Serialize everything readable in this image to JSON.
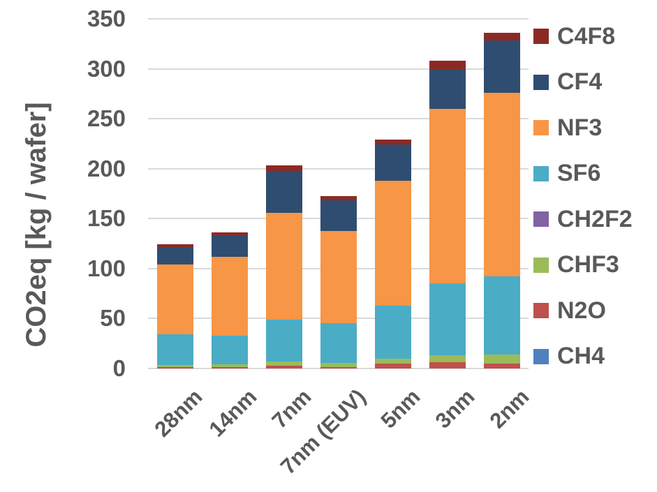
{
  "colors": {
    "text": "#595959",
    "gridline": "#D9D9D9",
    "background": "#FFFFFF"
  },
  "chart_data": {
    "type": "bar",
    "stacked": true,
    "title": "",
    "ylabel": "CO2eq [kg / wafer]",
    "xlabel": "",
    "ylim": [
      0,
      350
    ],
    "y_ticks": [
      0,
      50,
      100,
      150,
      200,
      250,
      300,
      350
    ],
    "grid": true,
    "legend_position": "right",
    "categories": [
      "28nm",
      "14nm",
      "7nm",
      "7nm (EUV)",
      "5nm",
      "3nm",
      "2nm"
    ],
    "series": [
      {
        "name": "CH4",
        "color": "#4F81BD",
        "values": [
          0,
          0,
          0,
          0,
          0,
          0,
          0
        ]
      },
      {
        "name": "N2O",
        "color": "#C0504D",
        "values": [
          1.5,
          1.5,
          3,
          1.5,
          5,
          6,
          5
        ]
      },
      {
        "name": "CHF3",
        "color": "#9BBB59",
        "values": [
          2,
          2.5,
          4,
          4,
          5,
          7,
          9
        ]
      },
      {
        "name": "CH2F2",
        "color": "#8064A2",
        "values": [
          0,
          0,
          0,
          0,
          0,
          0,
          0
        ]
      },
      {
        "name": "SF6",
        "color": "#4BACC6",
        "values": [
          30.5,
          28.5,
          42,
          40,
          53,
          72,
          78
        ]
      },
      {
        "name": "NF3",
        "color": "#F79646",
        "values": [
          70,
          79,
          107,
          92,
          125,
          175,
          184
        ]
      },
      {
        "name": "CF4",
        "color": "#2F4D71",
        "values": [
          17,
          22,
          42,
          31,
          36,
          40,
          52
        ]
      },
      {
        "name": "C4F8",
        "color": "#8B2A25",
        "values": [
          3.5,
          3,
          5,
          4,
          5,
          8,
          8
        ]
      }
    ],
    "bar_totals": [
      124.5,
      136.5,
      203,
      172.5,
      229,
      308,
      336
    ],
    "legend_order_top_to_bottom": [
      "C4F8",
      "CF4",
      "NF3",
      "SF6",
      "CH2F2",
      "CHF3",
      "N2O",
      "CH4"
    ]
  }
}
